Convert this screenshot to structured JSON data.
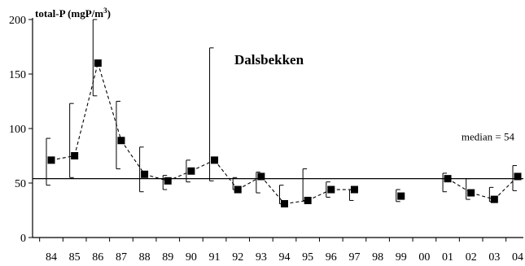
{
  "chart_data": {
    "type": "line",
    "title": "Dalsbekken",
    "ylabel_base": "total-P (mgP/m",
    "ylabel_sup": "3",
    "ylabel_tail": ")",
    "xlabel": "",
    "ylim": [
      0,
      200
    ],
    "yticks": [
      0,
      50,
      100,
      150,
      200
    ],
    "categories": [
      "84",
      "85",
      "86",
      "87",
      "88",
      "89",
      "90",
      "91",
      "92",
      "93",
      "94",
      "95",
      "96",
      "97",
      "98",
      "99",
      "00",
      "01",
      "02",
      "03",
      "04"
    ],
    "series": [
      {
        "values": [
          71,
          75,
          160,
          89,
          58,
          52,
          61,
          71,
          44,
          56,
          31,
          34,
          44,
          44,
          null,
          38,
          null,
          54,
          41,
          35,
          56
        ],
        "min": [
          48,
          55,
          130,
          63,
          42,
          44,
          51,
          52,
          44,
          41,
          31,
          34,
          37,
          34,
          null,
          33,
          null,
          42,
          35,
          33,
          43
        ],
        "max": [
          91,
          123,
          200,
          125,
          83,
          57,
          71,
          174,
          55,
          60,
          48,
          63,
          51,
          44,
          null,
          44,
          null,
          59,
          54,
          46,
          66
        ]
      }
    ],
    "median_value": 54,
    "median_label": "median = 54",
    "grid": false,
    "legend": "none",
    "colors": {
      "line": "#000000",
      "marker": "#000000",
      "background": "#ffffff"
    }
  }
}
